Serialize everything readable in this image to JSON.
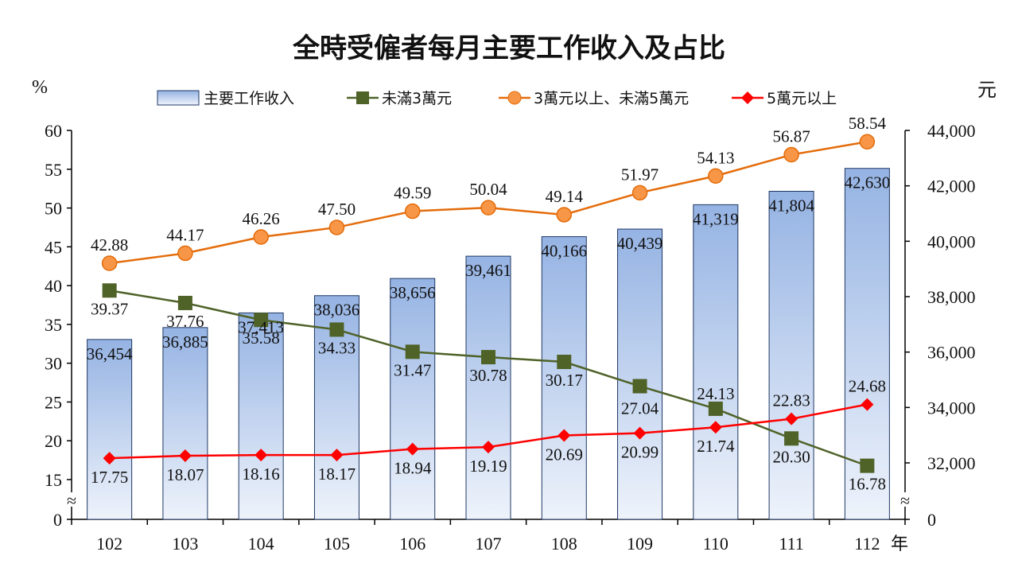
{
  "chart_data": {
    "type": "bar+line",
    "title": "全時受僱者每月主要工作收入及占比",
    "left_axis_unit": "%",
    "right_axis_unit": "元",
    "x_unit": "年",
    "categories": [
      "102",
      "103",
      "104",
      "105",
      "106",
      "107",
      "108",
      "109",
      "110",
      "111",
      "112"
    ],
    "left_ticks": [
      "0",
      "15",
      "20",
      "25",
      "30",
      "35",
      "40",
      "45",
      "50",
      "55",
      "60"
    ],
    "right_ticks": [
      "0",
      "32,000",
      "34,000",
      "36,000",
      "38,000",
      "40,000",
      "42,000",
      "44,000"
    ],
    "left_range": [
      15,
      60
    ],
    "right_range": [
      30000,
      44000
    ],
    "bar_series": {
      "name": "主要工作收入",
      "values": [
        36454,
        36885,
        37413,
        38036,
        38656,
        39461,
        40166,
        40439,
        41319,
        41804,
        42630
      ],
      "labels": [
        "36,454",
        "36,885",
        "37,413",
        "38,036",
        "38,656",
        "39,461",
        "40,166",
        "40,439",
        "41,319",
        "41,804",
        "42,630"
      ]
    },
    "line_series": [
      {
        "name": "未滿3萬元",
        "color": "#4f6228",
        "marker": "square",
        "values": [
          39.37,
          37.76,
          35.58,
          34.33,
          31.47,
          30.78,
          30.17,
          27.04,
          24.13,
          20.3,
          16.78
        ],
        "labels": [
          "39.37",
          "37.76",
          "35.58",
          "34.33",
          "31.47",
          "30.78",
          "30.17",
          "27.04",
          "24.13",
          "20.30",
          "16.78"
        ]
      },
      {
        "name": "3萬元以上、未滿5萬元",
        "color": "#e46c0a",
        "marker": "circle",
        "values": [
          42.88,
          44.17,
          46.26,
          47.5,
          49.59,
          50.04,
          49.14,
          51.97,
          54.13,
          56.87,
          58.54
        ],
        "labels": [
          "42.88",
          "44.17",
          "46.26",
          "47.50",
          "49.59",
          "50.04",
          "49.14",
          "51.97",
          "54.13",
          "56.87",
          "58.54"
        ]
      },
      {
        "name": "5萬元以上",
        "color": "#ff0000",
        "marker": "diamond",
        "values": [
          17.75,
          18.07,
          18.16,
          18.17,
          18.94,
          19.19,
          20.69,
          20.99,
          21.74,
          22.83,
          24.68
        ],
        "labels": [
          "17.75",
          "18.07",
          "18.16",
          "18.17",
          "18.94",
          "19.19",
          "20.69",
          "20.99",
          "21.74",
          "22.83",
          "24.68"
        ]
      }
    ],
    "legend_position": "top",
    "grid": false,
    "axis_break": "≈"
  }
}
